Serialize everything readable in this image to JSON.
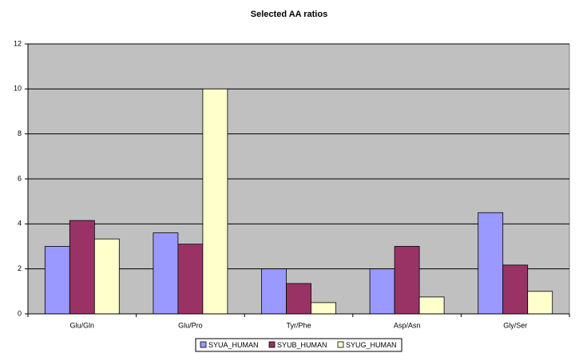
{
  "chart_data": {
    "type": "bar",
    "title": "Selected AA ratios",
    "categories": [
      "Glu/Gln",
      "Glu/Pro",
      "Tyr/Phe",
      "Asp/Asn",
      "Gly/Ser"
    ],
    "series": [
      {
        "name": "SYUA_HUMAN",
        "color": "#9999ff",
        "values": [
          3.0,
          3.6,
          2.0,
          2.0,
          4.5
        ]
      },
      {
        "name": "SYUB_HUMAN",
        "color": "#993366",
        "values": [
          4.15,
          3.1,
          1.35,
          3.0,
          2.17
        ]
      },
      {
        "name": "SYUG_HUMAN",
        "color": "#ffffcc",
        "values": [
          3.33,
          10,
          0.5,
          0.75,
          1.0
        ]
      }
    ],
    "ylim": [
      0,
      12
    ],
    "yticks": [
      0,
      2,
      4,
      6,
      8,
      10,
      12
    ],
    "grid": true,
    "plot_background": "#c0c0c0",
    "legend": "bottom"
  }
}
